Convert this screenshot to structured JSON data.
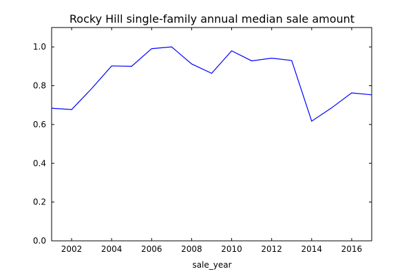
{
  "chart_data": {
    "type": "line",
    "title": "Rocky Hill single-family annual median sale amount",
    "xlabel": "sale_year",
    "ylabel": "",
    "xlim": [
      2001,
      2017
    ],
    "ylim": [
      0.0,
      1.1
    ],
    "xticks": [
      2002,
      2004,
      2006,
      2008,
      2010,
      2012,
      2014,
      2016
    ],
    "xtick_labels": [
      "2002",
      "2004",
      "2006",
      "2008",
      "2010",
      "2012",
      "2014",
      "2016"
    ],
    "yticks": [
      0.0,
      0.2,
      0.4,
      0.6,
      0.8,
      1.0
    ],
    "ytick_labels": [
      "0.0",
      "0.2",
      "0.4",
      "0.6",
      "0.8",
      "1.0"
    ],
    "grid": false,
    "legend": "none",
    "line_color": "#0000ff",
    "x": [
      2001,
      2002,
      2003,
      2004,
      2005,
      2006,
      2007,
      2008,
      2009,
      2010,
      2011,
      2012,
      2013,
      2014,
      2015,
      2016,
      2017
    ],
    "y": [
      0.684,
      0.677,
      0.785,
      0.902,
      0.9,
      0.991,
      1.0,
      0.912,
      0.864,
      0.98,
      0.928,
      0.942,
      0.93,
      0.617,
      0.686,
      0.763,
      0.753
    ]
  }
}
